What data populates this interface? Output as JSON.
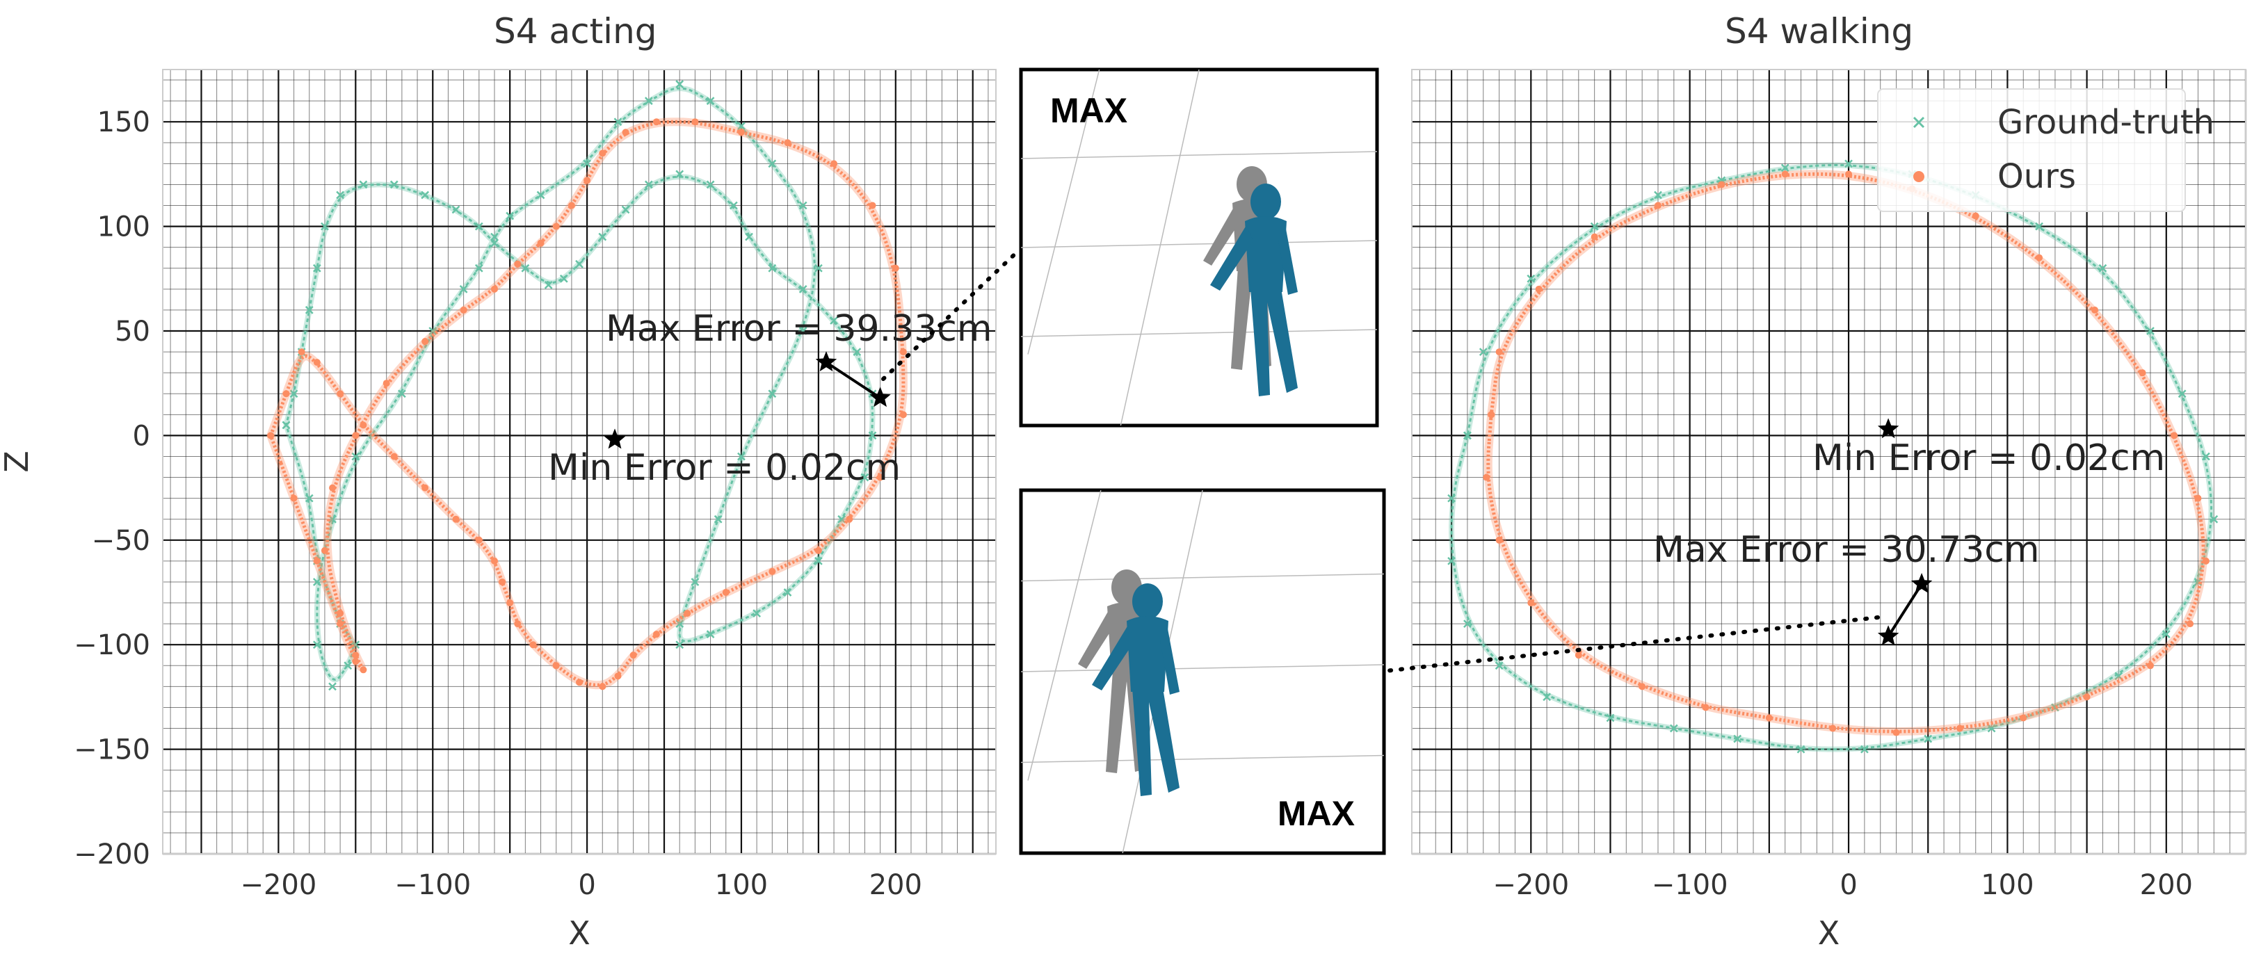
{
  "chart_data": [
    {
      "type": "scatter",
      "title": "S4 acting",
      "xlabel": "X",
      "ylabel": "Z",
      "xlim": [
        -275,
        265
      ],
      "ylim": [
        -200,
        175
      ],
      "xticks": [
        -200,
        -100,
        0,
        100,
        200
      ],
      "yticks": [
        -200,
        -150,
        -100,
        -50,
        0,
        50,
        100,
        150
      ],
      "grid": true,
      "series": [
        {
          "name": "Ground-truth",
          "color": "#66c2a5",
          "marker": "x",
          "x": [
            -195,
            -180,
            -175,
            -160,
            -150,
            -155,
            -165,
            -175,
            -175,
            -165,
            -150,
            -120,
            -100,
            -80,
            -70,
            -60,
            -50,
            -30,
            0,
            20,
            40,
            60,
            80,
            100,
            120,
            140,
            150,
            140,
            120,
            100,
            85,
            70,
            60,
            60,
            80,
            110,
            130,
            150,
            165,
            180,
            185,
            185,
            175,
            160,
            140,
            120,
            105,
            95,
            80,
            60,
            40,
            25,
            10,
            -5,
            -15,
            -25,
            -40,
            -60,
            -70,
            -85,
            -105,
            -125,
            -145,
            -160,
            -170,
            -175,
            -180,
            -185,
            -190,
            -195
          ],
          "y": [
            5,
            -30,
            -60,
            -90,
            -100,
            -110,
            -120,
            -100,
            -70,
            -40,
            -10,
            20,
            50,
            70,
            80,
            95,
            105,
            115,
            130,
            150,
            160,
            168,
            160,
            148,
            130,
            110,
            80,
            50,
            20,
            -10,
            -40,
            -70,
            -90,
            -100,
            -95,
            -85,
            -75,
            -60,
            -40,
            -20,
            0,
            20,
            40,
            55,
            70,
            80,
            95,
            110,
            120,
            125,
            120,
            108,
            95,
            82,
            75,
            72,
            80,
            92,
            100,
            108,
            115,
            120,
            120,
            115,
            100,
            80,
            60,
            40,
            20,
            5
          ]
        },
        {
          "name": "Ours",
          "color": "#fc8d62",
          "marker": "o",
          "x": [
            -205,
            -190,
            -175,
            -160,
            -150,
            -145,
            -150,
            -160,
            -170,
            -165,
            -150,
            -130,
            -105,
            -80,
            -60,
            -45,
            -30,
            -20,
            -10,
            0,
            10,
            25,
            45,
            70,
            100,
            130,
            160,
            185,
            200,
            205,
            205,
            190,
            170,
            150,
            120,
            90,
            65,
            45,
            30,
            20,
            10,
            -5,
            -20,
            -35,
            -45,
            -50,
            -55,
            -60,
            -70,
            -85,
            -105,
            -125,
            -145,
            -160,
            -175,
            -185,
            -195,
            -205
          ],
          "y": [
            0,
            -30,
            -60,
            -90,
            -108,
            -112,
            -105,
            -85,
            -55,
            -25,
            0,
            25,
            45,
            60,
            70,
            82,
            92,
            100,
            110,
            122,
            135,
            145,
            150,
            150,
            145,
            140,
            130,
            110,
            80,
            40,
            10,
            -20,
            -40,
            -55,
            -65,
            -75,
            -85,
            -95,
            -105,
            -115,
            -120,
            -118,
            -110,
            -100,
            -90,
            -80,
            -70,
            -60,
            -50,
            -40,
            -25,
            -10,
            5,
            20,
            35,
            40,
            20,
            0
          ]
        }
      ],
      "annotations": [
        {
          "text": "Max Error = 39.33cm",
          "points": [
            [
              155,
              35
            ],
            [
              190,
              18
            ]
          ]
        },
        {
          "text": "Min Error = 0.02cm",
          "points": [
            [
              18,
              -2
            ]
          ]
        }
      ]
    },
    {
      "type": "scatter",
      "title": "S4 walking",
      "xlabel": "X",
      "ylabel": "",
      "xlim": [
        -275,
        250
      ],
      "ylim": [
        -200,
        175
      ],
      "xticks": [
        -200,
        -100,
        0,
        100,
        200
      ],
      "yticks": [
        -200,
        -150,
        -100,
        -50,
        0,
        50,
        100,
        150
      ],
      "grid": true,
      "legend_position": "top-right",
      "series": [
        {
          "name": "Ground-truth",
          "color": "#66c2a5",
          "marker": "x",
          "x": [
            -240,
            -250,
            -250,
            -240,
            -220,
            -190,
            -150,
            -110,
            -70,
            -30,
            10,
            50,
            90,
            130,
            170,
            200,
            220,
            230,
            225,
            210,
            190,
            160,
            120,
            80,
            40,
            0,
            -40,
            -80,
            -120,
            -160,
            -200,
            -230,
            -240
          ],
          "y": [
            0,
            -30,
            -60,
            -90,
            -110,
            -125,
            -135,
            -140,
            -145,
            -150,
            -150,
            -145,
            -140,
            -130,
            -115,
            -95,
            -70,
            -40,
            -10,
            20,
            50,
            80,
            100,
            115,
            125,
            130,
            128,
            122,
            115,
            100,
            75,
            40,
            0
          ]
        },
        {
          "name": "Ours",
          "color": "#fc8d62",
          "marker": "o",
          "x": [
            -225,
            -228,
            -220,
            -200,
            -170,
            -130,
            -90,
            -50,
            -10,
            30,
            70,
            110,
            150,
            190,
            215,
            225,
            220,
            205,
            185,
            155,
            120,
            80,
            40,
            0,
            -40,
            -80,
            -120,
            -160,
            -195,
            -220,
            -225
          ],
          "y": [
            10,
            -20,
            -50,
            -80,
            -105,
            -120,
            -130,
            -135,
            -140,
            -142,
            -140,
            -135,
            -125,
            -110,
            -90,
            -60,
            -30,
            0,
            30,
            60,
            85,
            105,
            118,
            125,
            125,
            120,
            110,
            95,
            70,
            40,
            10
          ]
        }
      ],
      "annotations": [
        {
          "text": "Max Error = 30.73cm",
          "points": [
            [
              25,
              -96
            ],
            [
              46,
              -71
            ]
          ]
        },
        {
          "text": "Min Error = 0.02cm",
          "points": [
            [
              25,
              3
            ]
          ]
        }
      ]
    }
  ],
  "insets": [
    {
      "label": "MAX"
    },
    {
      "label": "MAX"
    }
  ],
  "legend": {
    "items": [
      "Ground-truth",
      "Ours"
    ]
  }
}
